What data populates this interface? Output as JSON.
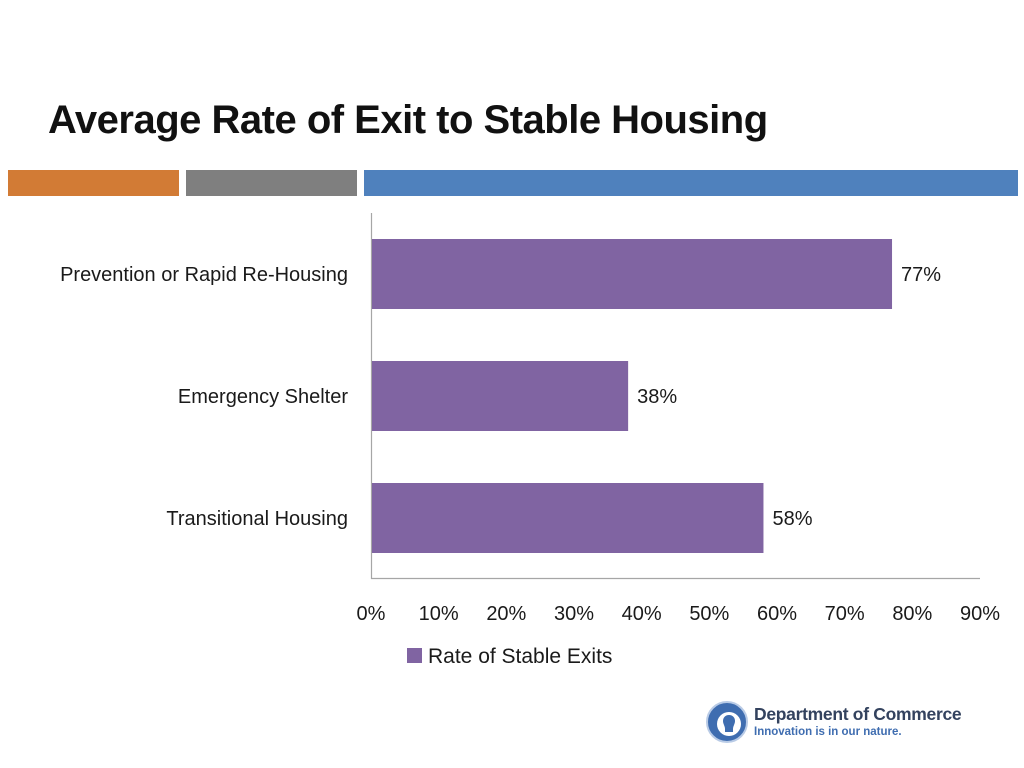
{
  "slide": {
    "title": "Average Rate of Exit to Stable Housing",
    "accent_colors": [
      "#d27b35",
      "#7f7f7f",
      "#4f81bd"
    ]
  },
  "chart_data": {
    "type": "bar",
    "orientation": "horizontal",
    "title": "Average Rate of Exit to Stable Housing",
    "categories": [
      "Prevention or Rapid Re-Housing",
      "Emergency Shelter",
      "Transitional Housing"
    ],
    "series": [
      {
        "name": "Rate of Stable Exits",
        "values": [
          77,
          38,
          58
        ],
        "color": "#8064a2"
      }
    ],
    "value_labels": [
      "77%",
      "38%",
      "58%"
    ],
    "xlim": [
      0,
      90
    ],
    "xticks": [
      0,
      10,
      20,
      30,
      40,
      50,
      60,
      70,
      80,
      90
    ],
    "xtick_labels": [
      "0%",
      "10%",
      "20%",
      "30%",
      "40%",
      "50%",
      "60%",
      "70%",
      "80%",
      "90%"
    ],
    "xlabel": "",
    "ylabel": "",
    "grid": false,
    "legend_position": "bottom"
  },
  "logo": {
    "name": "Department of Commerce",
    "tagline": "Innovation is in our nature.",
    "seal_text": "STATE OF WASHINGTON"
  }
}
